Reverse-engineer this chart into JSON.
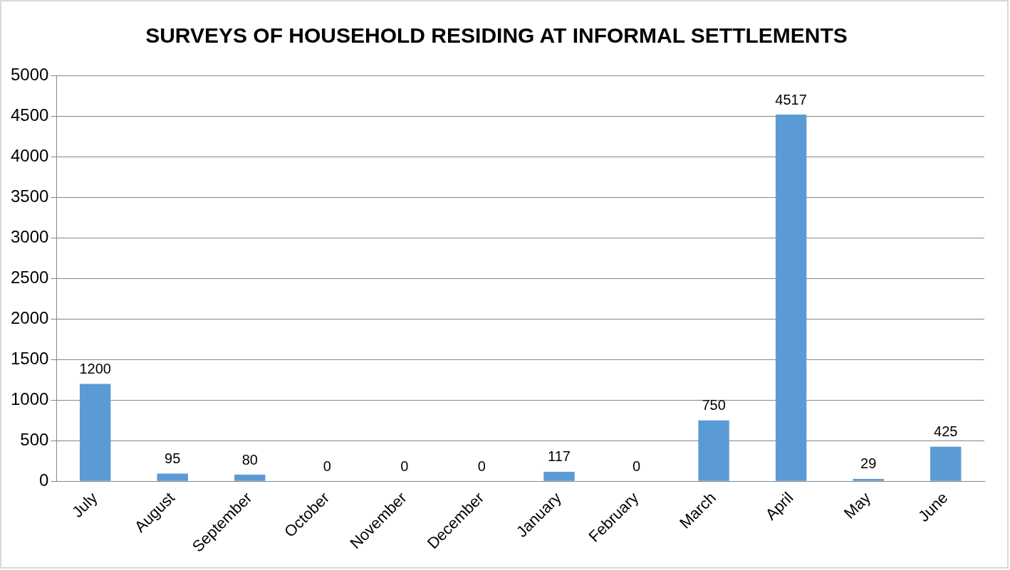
{
  "chart_data": {
    "type": "bar",
    "title": "SURVEYS OF HOUSEHOLD RESIDING AT INFORMAL SETTLEMENTS",
    "categories": [
      "July",
      "August",
      "September",
      "October",
      "November",
      "December",
      "January",
      "February",
      "March",
      "April",
      "May",
      "June"
    ],
    "values": [
      1200,
      95,
      80,
      0,
      0,
      0,
      117,
      0,
      750,
      4517,
      29,
      425
    ],
    "color": "#5b9bd5",
    "ylim": [
      0,
      5000
    ],
    "yticks": [
      0,
      500,
      1000,
      1500,
      2000,
      2500,
      3000,
      3500,
      4000,
      4500,
      5000
    ],
    "grid": "y",
    "data_labels": true
  }
}
